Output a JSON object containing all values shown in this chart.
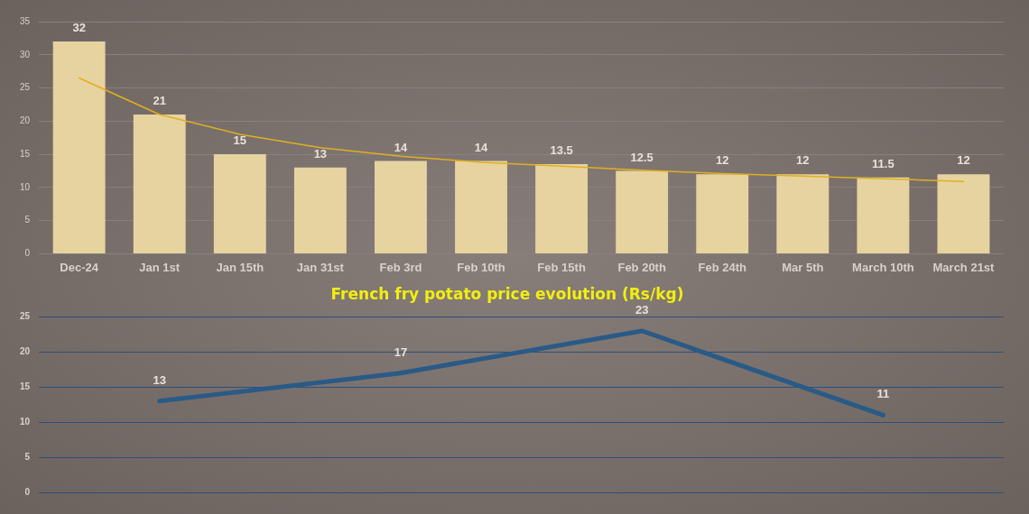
{
  "chart_data": [
    {
      "type": "bar",
      "categories": [
        "Dec-24",
        "Jan 1st",
        "Jan 15th",
        "Jan 31st",
        "Feb 3rd",
        "Feb 10th",
        "Feb 15th",
        "Feb 20th",
        "Feb 24th",
        "Mar 5th",
        "March 10th",
        "March 21st"
      ],
      "series": [
        {
          "type": "bar",
          "color": "#e6d3a0",
          "values": [
            32,
            21,
            15,
            13,
            14,
            14,
            13.5,
            12.5,
            12,
            12,
            11.5,
            12
          ],
          "value_labels": [
            "32",
            "21",
            "15",
            "13",
            "14",
            "14",
            "13.5",
            "12.5",
            "12",
            "12",
            "11.5",
            "12"
          ]
        },
        {
          "type": "line",
          "color": "#e0b020",
          "values": [
            26.5,
            21,
            18,
            16,
            14.7,
            13.8,
            13.2,
            12.6,
            12.1,
            11.7,
            11.3,
            10.9
          ]
        }
      ],
      "ylim": [
        0,
        35
      ],
      "yticks": [
        0,
        5,
        10,
        15,
        20,
        25,
        30,
        35
      ],
      "grid": "y",
      "legend": false
    },
    {
      "type": "line",
      "title": "French fry potato price evolution (Rs/kg)",
      "categories": [
        null,
        null,
        null,
        null
      ],
      "series": [
        {
          "color": "#2a5a86",
          "values": [
            13,
            17,
            23,
            11
          ]
        }
      ],
      "ylim": [
        0,
        25
      ],
      "yticks": [
        0,
        5,
        10,
        15,
        20,
        25
      ],
      "grid": "y",
      "legend": false,
      "data_labels": true,
      "tick_labels": "y",
      "marker": "none"
    }
  ]
}
